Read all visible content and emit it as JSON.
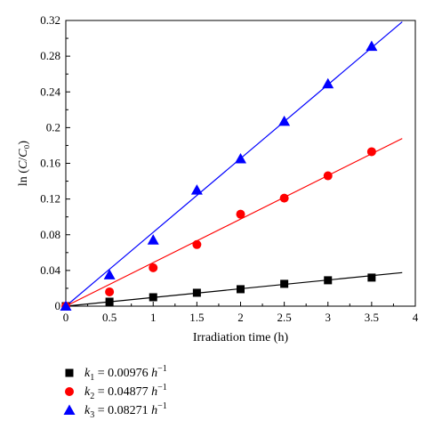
{
  "chart_data": {
    "type": "scatter",
    "xlabel": "Irradiation time (h)",
    "ylabel": "ln (C/C₀)",
    "xlim": [
      0,
      4
    ],
    "ylim": [
      0,
      0.32
    ],
    "x_ticks": [
      "0",
      "0.5",
      "1",
      "1.5",
      "2",
      "2.5",
      "3",
      "3.5",
      "4"
    ],
    "y_ticks": [
      "0",
      "0.04",
      "0.08",
      "0.12",
      "0.16",
      "0.2",
      "0.24",
      "0.28",
      "0.32"
    ],
    "grid": false,
    "legend_position": "bottom-left, below plot",
    "series": [
      {
        "name": "k1 = 0.00976 h⁻¹",
        "legend": {
          "k": "k",
          "sub": "1",
          "value": "= 0.00976",
          "unit": "h",
          "exp": "−1"
        },
        "marker": "square",
        "color": "#000000",
        "fit_slope": 0.00976,
        "x": [
          0,
          0.5,
          1,
          1.5,
          2,
          2.5,
          3,
          3.5
        ],
        "y": [
          0,
          0.005,
          0.01,
          0.015,
          0.019,
          0.025,
          0.029,
          0.032
        ]
      },
      {
        "name": "k2 = 0.04877 h⁻¹",
        "legend": {
          "k": "k",
          "sub": "2",
          "value": "= 0.04877",
          "unit": "h",
          "exp": "−1"
        },
        "marker": "circle",
        "color": "#ff0000",
        "fit_slope": 0.04877,
        "x": [
          0,
          0.5,
          1,
          1.5,
          2,
          2.5,
          3,
          3.5
        ],
        "y": [
          0,
          0.016,
          0.043,
          0.069,
          0.103,
          0.121,
          0.146,
          0.173
        ]
      },
      {
        "name": "k3 = 0.08271 h⁻¹",
        "legend": {
          "k": "k",
          "sub": "3",
          "value": "= 0.08271",
          "unit": "h",
          "exp": "−1"
        },
        "marker": "triangle",
        "color": "#0000ff",
        "fit_slope": 0.08271,
        "x": [
          0,
          0.5,
          1,
          1.5,
          2,
          2.5,
          3,
          3.5
        ],
        "y": [
          0,
          0.035,
          0.074,
          0.13,
          0.165,
          0.207,
          0.249,
          0.291
        ]
      }
    ]
  }
}
